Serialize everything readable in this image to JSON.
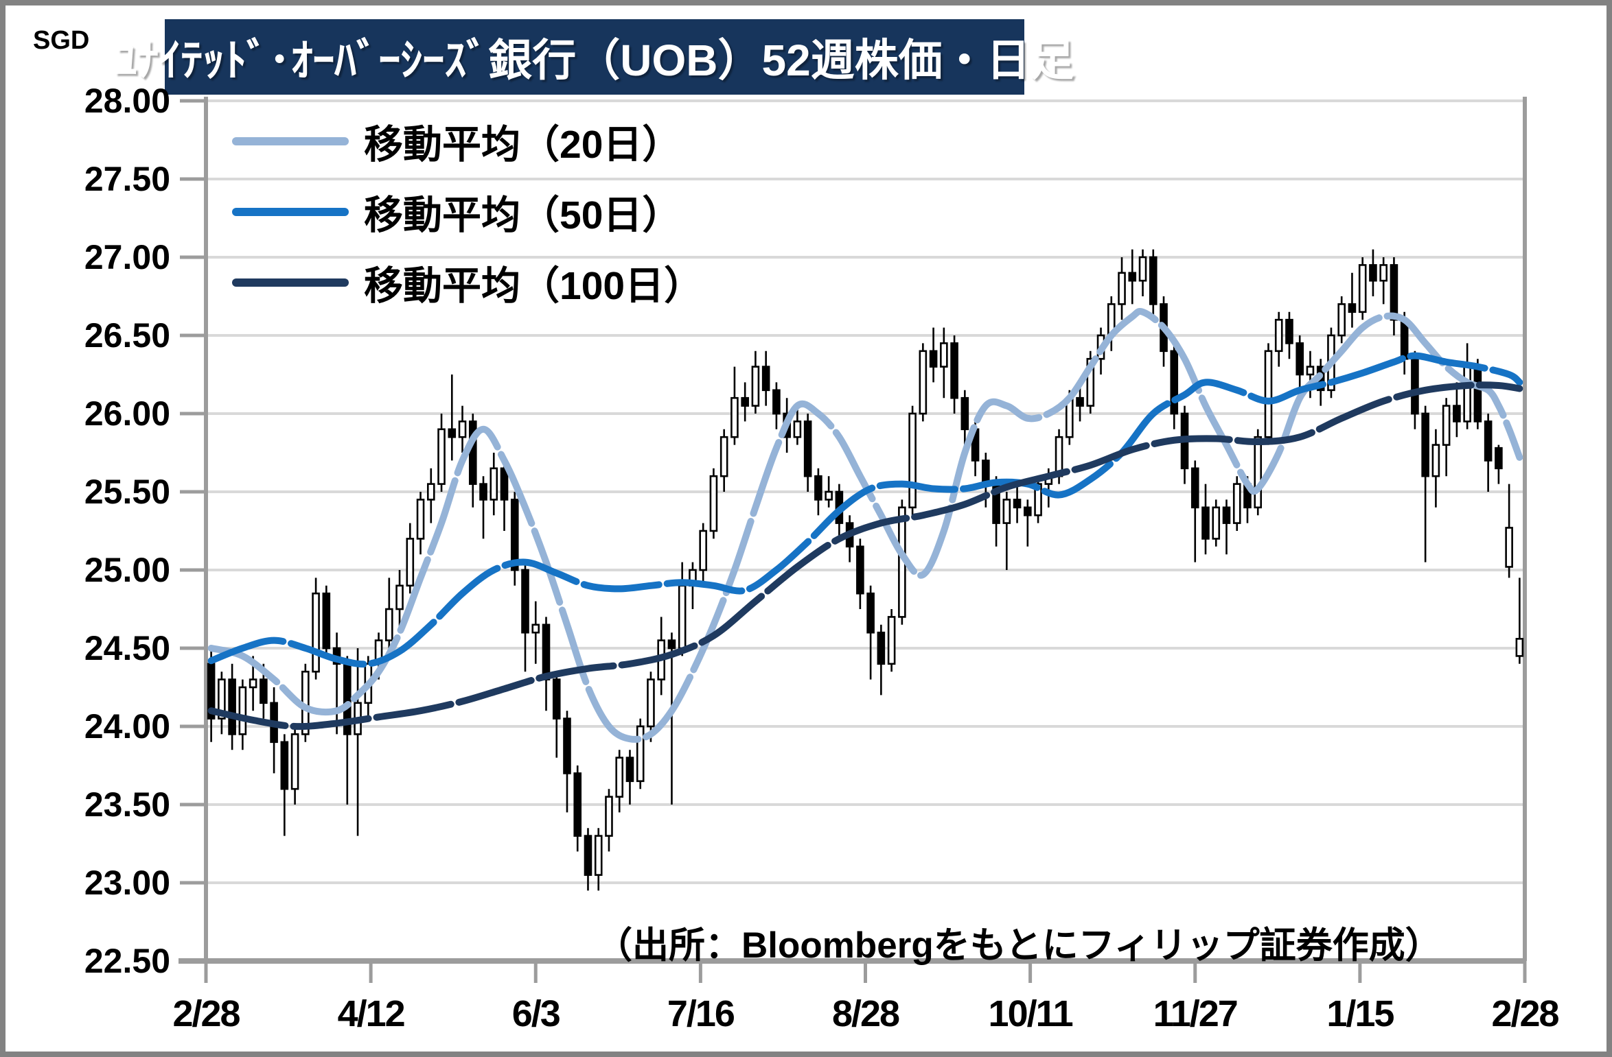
{
  "title": "ﾕﾅｲﾃｯﾄﾞ･ｵｰﾊﾞｰｼｰｽﾞ銀行（UOB）52週株価・日足",
  "source_note": "（出所：Bloombergをもとにフィリップ証券作成）",
  "colors": {
    "title_bar_bg": "#17355C",
    "title_text": "#FFFFFF",
    "grid": "#D9D9D9",
    "axis": "#9C9C9C",
    "candle": "#000000",
    "ma20": "#95B3D7",
    "ma50": "#1673C5",
    "ma100": "#1F3A5F",
    "frame": "#828282"
  },
  "chart_data": {
    "type": "candlestick",
    "title": "ﾕﾅｲﾃｯﾄﾞ･ｵｰﾊﾞｰｼｰｽﾞ銀行（UOB）52週株価・日足",
    "ylabel": "SGD",
    "ylim": [
      22.5,
      28.0
    ],
    "ytick_step": 0.5,
    "grid": true,
    "legend_position": "top-left",
    "yticks": [
      "28.00",
      "27.50",
      "27.00",
      "26.50",
      "26.00",
      "25.50",
      "25.00",
      "24.50",
      "24.00",
      "23.50",
      "23.00",
      "22.50"
    ],
    "xticks": [
      "2/28",
      "4/12",
      "6/3",
      "7/16",
      "8/28",
      "10/11",
      "11/27",
      "1/15",
      "2/28"
    ],
    "candles_ohlc": [
      [
        24.4,
        24.5,
        23.9,
        24.05
      ],
      [
        24.05,
        24.35,
        23.95,
        24.3
      ],
      [
        24.3,
        24.4,
        23.85,
        23.95
      ],
      [
        23.95,
        24.3,
        23.85,
        24.25
      ],
      [
        24.25,
        24.45,
        24.1,
        24.3
      ],
      [
        24.3,
        24.4,
        24.05,
        24.15
      ],
      [
        24.15,
        24.25,
        23.7,
        23.9
      ],
      [
        23.9,
        23.95,
        23.3,
        23.6
      ],
      [
        23.6,
        24.0,
        23.5,
        23.95
      ],
      [
        23.95,
        24.4,
        23.9,
        24.35
      ],
      [
        24.35,
        24.95,
        24.3,
        24.85
      ],
      [
        24.85,
        24.9,
        24.45,
        24.5
      ],
      [
        24.5,
        24.6,
        23.95,
        24.4
      ],
      [
        24.4,
        24.45,
        23.5,
        23.95
      ],
      [
        23.95,
        24.5,
        23.3,
        24.15
      ],
      [
        24.15,
        24.45,
        24.05,
        24.4
      ],
      [
        24.4,
        24.6,
        24.3,
        24.55
      ],
      [
        24.55,
        24.95,
        24.45,
        24.75
      ],
      [
        24.75,
        25.0,
        24.6,
        24.9
      ],
      [
        24.9,
        25.3,
        24.85,
        25.2
      ],
      [
        25.2,
        25.5,
        25.1,
        25.45
      ],
      [
        25.45,
        25.65,
        25.3,
        25.55
      ],
      [
        25.55,
        26.0,
        25.5,
        25.9
      ],
      [
        25.9,
        26.25,
        25.7,
        25.85
      ],
      [
        25.85,
        26.05,
        25.75,
        25.95
      ],
      [
        25.95,
        26.0,
        25.4,
        25.55
      ],
      [
        25.55,
        25.6,
        25.2,
        25.45
      ],
      [
        25.45,
        25.75,
        25.35,
        25.65
      ],
      [
        25.65,
        25.7,
        25.25,
        25.45
      ],
      [
        25.45,
        25.5,
        24.9,
        25.0
      ],
      [
        25.0,
        25.05,
        24.35,
        24.6
      ],
      [
        24.6,
        24.8,
        24.4,
        24.65
      ],
      [
        24.65,
        24.7,
        24.1,
        24.3
      ],
      [
        24.3,
        24.35,
        23.8,
        24.05
      ],
      [
        24.05,
        24.1,
        23.45,
        23.7
      ],
      [
        23.7,
        23.75,
        23.2,
        23.3
      ],
      [
        23.3,
        23.35,
        22.95,
        23.05
      ],
      [
        23.05,
        23.35,
        22.95,
        23.3
      ],
      [
        23.3,
        23.6,
        23.2,
        23.55
      ],
      [
        23.55,
        23.85,
        23.45,
        23.8
      ],
      [
        23.8,
        23.85,
        23.5,
        23.65
      ],
      [
        23.65,
        24.05,
        23.6,
        24.0
      ],
      [
        24.0,
        24.35,
        23.9,
        24.3
      ],
      [
        24.3,
        24.7,
        24.2,
        24.55
      ],
      [
        24.55,
        24.6,
        23.5,
        24.5
      ],
      [
        24.5,
        25.05,
        24.45,
        24.9
      ],
      [
        24.9,
        25.05,
        24.75,
        25.0
      ],
      [
        25.0,
        25.3,
        24.9,
        25.25
      ],
      [
        25.25,
        25.65,
        25.2,
        25.6
      ],
      [
        25.6,
        25.9,
        25.5,
        25.85
      ],
      [
        25.85,
        26.3,
        25.8,
        26.1
      ],
      [
        26.1,
        26.2,
        25.95,
        26.05
      ],
      [
        26.05,
        26.4,
        26.0,
        26.3
      ],
      [
        26.3,
        26.4,
        26.05,
        26.15
      ],
      [
        26.15,
        26.2,
        25.9,
        26.0
      ],
      [
        26.0,
        26.1,
        25.75,
        25.85
      ],
      [
        25.85,
        26.05,
        25.8,
        25.95
      ],
      [
        25.95,
        26.0,
        25.5,
        25.6
      ],
      [
        25.6,
        25.65,
        25.35,
        25.45
      ],
      [
        25.45,
        25.6,
        25.4,
        25.5
      ],
      [
        25.5,
        25.55,
        25.2,
        25.3
      ],
      [
        25.3,
        25.35,
        25.05,
        25.15
      ],
      [
        25.15,
        25.2,
        24.75,
        24.85
      ],
      [
        24.85,
        24.9,
        24.3,
        24.6
      ],
      [
        24.6,
        24.65,
        24.2,
        24.4
      ],
      [
        24.4,
        24.75,
        24.35,
        24.7
      ],
      [
        24.7,
        25.45,
        24.65,
        25.4
      ],
      [
        25.4,
        26.05,
        25.35,
        26.0
      ],
      [
        26.0,
        26.45,
        25.95,
        26.4
      ],
      [
        26.4,
        26.55,
        26.2,
        26.3
      ],
      [
        26.3,
        26.55,
        26.1,
        26.45
      ],
      [
        26.45,
        26.5,
        26.0,
        26.1
      ],
      [
        26.1,
        26.15,
        25.8,
        25.9
      ],
      [
        25.9,
        25.95,
        25.6,
        25.7
      ],
      [
        25.7,
        25.75,
        25.4,
        25.55
      ],
      [
        25.55,
        25.6,
        25.15,
        25.3
      ],
      [
        25.3,
        25.5,
        25.0,
        25.45
      ],
      [
        25.45,
        25.55,
        25.3,
        25.4
      ],
      [
        25.4,
        25.45,
        25.15,
        25.35
      ],
      [
        25.35,
        25.6,
        25.3,
        25.55
      ],
      [
        25.55,
        25.65,
        25.4,
        25.6
      ],
      [
        25.6,
        25.9,
        25.55,
        25.85
      ],
      [
        25.85,
        26.15,
        25.8,
        26.1
      ],
      [
        26.1,
        26.2,
        25.95,
        26.05
      ],
      [
        26.05,
        26.4,
        26.0,
        26.35
      ],
      [
        26.35,
        26.55,
        26.25,
        26.5
      ],
      [
        26.5,
        26.75,
        26.4,
        26.7
      ],
      [
        26.7,
        27.0,
        26.6,
        26.9
      ],
      [
        26.9,
        27.05,
        26.7,
        26.85
      ],
      [
        26.85,
        27.05,
        26.75,
        27.0
      ],
      [
        27.0,
        27.05,
        26.6,
        26.7
      ],
      [
        26.7,
        26.75,
        26.3,
        26.4
      ],
      [
        26.4,
        26.45,
        25.9,
        26.0
      ],
      [
        26.0,
        26.05,
        25.55,
        25.65
      ],
      [
        25.65,
        25.7,
        25.05,
        25.4
      ],
      [
        25.4,
        25.55,
        25.1,
        25.2
      ],
      [
        25.2,
        25.45,
        25.15,
        25.4
      ],
      [
        25.4,
        25.45,
        25.1,
        25.3
      ],
      [
        25.3,
        25.6,
        25.25,
        25.55
      ],
      [
        25.55,
        25.6,
        25.3,
        25.4
      ],
      [
        25.4,
        25.9,
        25.35,
        25.85
      ],
      [
        25.85,
        26.45,
        25.8,
        26.4
      ],
      [
        26.4,
        26.65,
        26.3,
        26.6
      ],
      [
        26.6,
        26.65,
        26.35,
        26.45
      ],
      [
        26.45,
        26.5,
        26.15,
        26.25
      ],
      [
        26.25,
        26.4,
        26.1,
        26.3
      ],
      [
        26.3,
        26.35,
        26.05,
        26.15
      ],
      [
        26.15,
        26.55,
        26.1,
        26.5
      ],
      [
        26.5,
        26.75,
        26.45,
        26.7
      ],
      [
        26.7,
        26.9,
        26.55,
        26.65
      ],
      [
        26.65,
        27.0,
        26.6,
        26.95
      ],
      [
        26.95,
        27.05,
        26.75,
        26.85
      ],
      [
        26.85,
        27.0,
        26.7,
        26.95
      ],
      [
        26.95,
        27.0,
        26.5,
        26.6
      ],
      [
        26.6,
        26.65,
        26.25,
        26.35
      ],
      [
        26.35,
        26.4,
        25.9,
        26.0
      ],
      [
        26.0,
        26.05,
        25.05,
        25.6
      ],
      [
        25.6,
        25.9,
        25.4,
        25.8
      ],
      [
        25.8,
        26.1,
        25.6,
        26.05
      ],
      [
        26.05,
        26.2,
        25.85,
        25.95
      ],
      [
        25.95,
        26.45,
        25.9,
        26.3
      ],
      [
        26.3,
        26.35,
        25.9,
        25.95
      ],
      [
        25.95,
        26.0,
        25.5,
        25.7
      ],
      [
        25.78,
        25.8,
        25.55,
        25.65
      ],
      [
        25.02,
        25.55,
        24.95,
        25.27
      ],
      [
        24.45,
        24.95,
        24.4,
        24.56
      ]
    ],
    "series": [
      {
        "name": "移動平均（20日）",
        "color": "#95B3D7",
        "anchors": [
          [
            0,
            24.5
          ],
          [
            3,
            24.45
          ],
          [
            6,
            24.3
          ],
          [
            9,
            24.12
          ],
          [
            12,
            24.1
          ],
          [
            14,
            24.2
          ],
          [
            16,
            24.35
          ],
          [
            18,
            24.6
          ],
          [
            20,
            24.95
          ],
          [
            22,
            25.3
          ],
          [
            24,
            25.7
          ],
          [
            26,
            25.9
          ],
          [
            28,
            25.7
          ],
          [
            30,
            25.4
          ],
          [
            32,
            25.05
          ],
          [
            34,
            24.65
          ],
          [
            36,
            24.25
          ],
          [
            38,
            24.0
          ],
          [
            40,
            23.92
          ],
          [
            42,
            23.95
          ],
          [
            44,
            24.1
          ],
          [
            46,
            24.35
          ],
          [
            48,
            24.65
          ],
          [
            50,
            25.0
          ],
          [
            52,
            25.4
          ],
          [
            54,
            25.78
          ],
          [
            56,
            26.05
          ],
          [
            58,
            26.0
          ],
          [
            60,
            25.85
          ],
          [
            62,
            25.6
          ],
          [
            64,
            25.35
          ],
          [
            66,
            25.1
          ],
          [
            68,
            24.97
          ],
          [
            70,
            25.25
          ],
          [
            72,
            25.75
          ],
          [
            74,
            26.05
          ],
          [
            76,
            26.05
          ],
          [
            78,
            25.97
          ],
          [
            80,
            26.0
          ],
          [
            82,
            26.1
          ],
          [
            84,
            26.3
          ],
          [
            86,
            26.5
          ],
          [
            88,
            26.62
          ],
          [
            89,
            26.65
          ],
          [
            91,
            26.55
          ],
          [
            93,
            26.35
          ],
          [
            95,
            26.05
          ],
          [
            97,
            25.8
          ],
          [
            99,
            25.55
          ],
          [
            100,
            25.52
          ],
          [
            102,
            25.75
          ],
          [
            104,
            26.1
          ],
          [
            106,
            26.25
          ],
          [
            108,
            26.4
          ],
          [
            110,
            26.55
          ],
          [
            112,
            26.62
          ],
          [
            114,
            26.6
          ],
          [
            116,
            26.45
          ],
          [
            118,
            26.3
          ],
          [
            120,
            26.2
          ],
          [
            122,
            26.15
          ],
          [
            123,
            26.05
          ],
          [
            124,
            25.9
          ],
          [
            125,
            25.72
          ]
        ]
      },
      {
        "name": "移動平均（50日）",
        "color": "#1673C5",
        "anchors": [
          [
            0,
            24.42
          ],
          [
            3,
            24.5
          ],
          [
            6,
            24.55
          ],
          [
            9,
            24.5
          ],
          [
            12,
            24.43
          ],
          [
            15,
            24.4
          ],
          [
            18,
            24.48
          ],
          [
            21,
            24.65
          ],
          [
            24,
            24.85
          ],
          [
            27,
            25.0
          ],
          [
            30,
            25.05
          ],
          [
            33,
            24.98
          ],
          [
            36,
            24.9
          ],
          [
            39,
            24.88
          ],
          [
            42,
            24.9
          ],
          [
            45,
            24.92
          ],
          [
            48,
            24.9
          ],
          [
            51,
            24.87
          ],
          [
            54,
            25.0
          ],
          [
            57,
            25.18
          ],
          [
            60,
            25.38
          ],
          [
            63,
            25.52
          ],
          [
            66,
            25.55
          ],
          [
            69,
            25.52
          ],
          [
            72,
            25.52
          ],
          [
            75,
            25.56
          ],
          [
            78,
            25.55
          ],
          [
            81,
            25.48
          ],
          [
            84,
            25.58
          ],
          [
            87,
            25.75
          ],
          [
            90,
            26.0
          ],
          [
            93,
            26.12
          ],
          [
            95,
            26.2
          ],
          [
            98,
            26.15
          ],
          [
            101,
            26.08
          ],
          [
            104,
            26.15
          ],
          [
            107,
            26.2
          ],
          [
            110,
            26.26
          ],
          [
            113,
            26.33
          ],
          [
            115,
            26.37
          ],
          [
            118,
            26.33
          ],
          [
            121,
            26.3
          ],
          [
            124,
            26.25
          ],
          [
            125,
            26.2
          ]
        ]
      },
      {
        "name": "移動平均（100日）",
        "color": "#1F3A5F",
        "anchors": [
          [
            0,
            24.1
          ],
          [
            4,
            24.04
          ],
          [
            8,
            24.0
          ],
          [
            12,
            24.02
          ],
          [
            16,
            24.06
          ],
          [
            20,
            24.1
          ],
          [
            24,
            24.16
          ],
          [
            28,
            24.24
          ],
          [
            32,
            24.32
          ],
          [
            36,
            24.37
          ],
          [
            40,
            24.4
          ],
          [
            44,
            24.46
          ],
          [
            48,
            24.58
          ],
          [
            52,
            24.8
          ],
          [
            56,
            25.02
          ],
          [
            60,
            25.2
          ],
          [
            64,
            25.3
          ],
          [
            68,
            25.35
          ],
          [
            72,
            25.42
          ],
          [
            76,
            25.53
          ],
          [
            80,
            25.6
          ],
          [
            84,
            25.67
          ],
          [
            88,
            25.77
          ],
          [
            92,
            25.83
          ],
          [
            96,
            25.84
          ],
          [
            100,
            25.82
          ],
          [
            104,
            25.85
          ],
          [
            108,
            25.97
          ],
          [
            112,
            26.08
          ],
          [
            116,
            26.15
          ],
          [
            120,
            26.18
          ],
          [
            123,
            26.18
          ],
          [
            125,
            26.16
          ]
        ]
      }
    ]
  },
  "legend": [
    {
      "label": "移動平均（20日）",
      "color": "#95B3D7"
    },
    {
      "label": "移動平均（50日）",
      "color": "#1673C5"
    },
    {
      "label": "移動平均（100日）",
      "color": "#1F3A5F"
    }
  ]
}
